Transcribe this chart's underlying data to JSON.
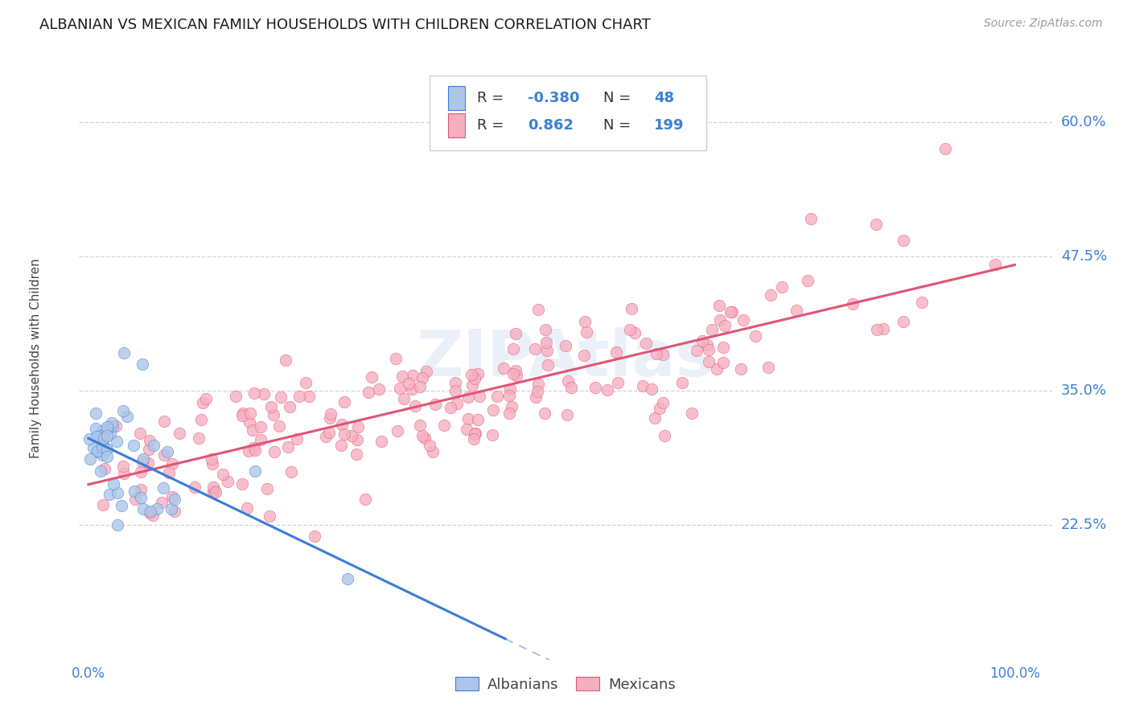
{
  "title": "ALBANIAN VS MEXICAN FAMILY HOUSEHOLDS WITH CHILDREN CORRELATION CHART",
  "source": "Source: ZipAtlas.com",
  "ylabel": "Family Households with Children",
  "albanian_color": "#adc6e8",
  "mexican_color": "#f5b0c0",
  "albanian_line_color": "#3b7dd8",
  "mexican_line_color": "#e05575",
  "albanian_R": -0.38,
  "albanian_N": 48,
  "mexican_R": 0.862,
  "mexican_N": 199,
  "watermark": "ZIPAtlas",
  "background_color": "#ffffff",
  "grid_color": "#cccccc",
  "legend_label_albanian": "Albanians",
  "legend_label_mexican": "Mexicans",
  "tick_color": "#3d7fd6",
  "yticks": [
    0.225,
    0.35,
    0.475,
    0.6
  ],
  "ytick_labels": [
    "22.5%",
    "35.0%",
    "47.5%",
    "60.0%"
  ],
  "ymin": 0.1,
  "ymax": 0.66,
  "xmin": -0.01,
  "xmax": 1.04,
  "title_fontsize": 13,
  "source_fontsize": 10,
  "ylabel_fontsize": 11,
  "legend_fontsize": 13,
  "ytick_fontsize": 13,
  "xtick_fontsize": 12
}
